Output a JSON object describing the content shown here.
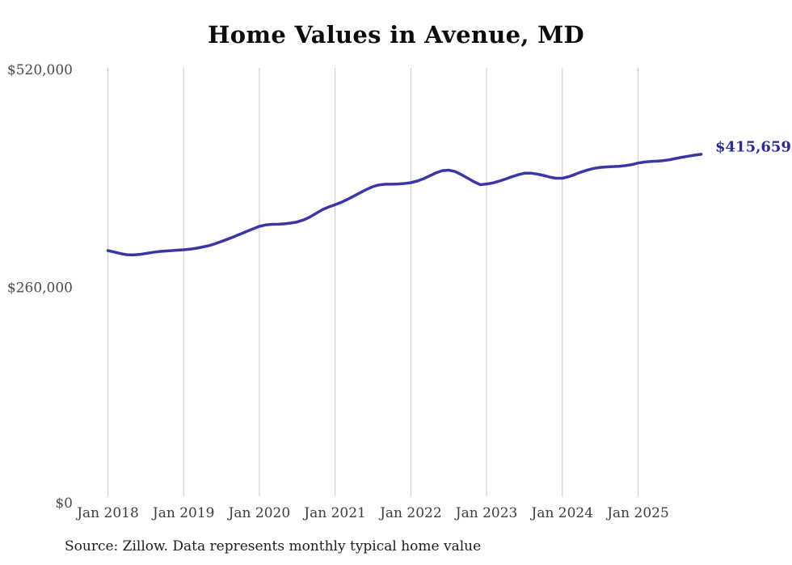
{
  "page": {
    "background": "#ffffff"
  },
  "chart": {
    "title": "Home Values in Avenue, MD",
    "end_label": "$415,659",
    "source": "Source: Zillow. Data represents monthly typical home value"
  },
  "colors": {
    "line": "#3b36a5",
    "end_label": "#2d2b92",
    "grid": "#cacaca",
    "title_text": "#0c0c0c",
    "x_tick_text": "#3d3d3d",
    "y_tick_text": "#4a4a4a",
    "source_text": "#1d1d1d",
    "background": "#ffffff"
  },
  "chart_data": {
    "type": "line",
    "title": "Home Values in Avenue, MD",
    "series_name": "Monthly typical home value (Zillow)",
    "xlabel": "",
    "ylabel": "",
    "ylim": [
      0,
      520000
    ],
    "grid": "vertical-only",
    "legend": "none",
    "last_value": 415659,
    "last_value_label": "$415,659",
    "y_ticks": [
      {
        "value": 520000,
        "label": "$520,000"
      },
      {
        "value": 260000,
        "label": "$260,000"
      },
      {
        "value": 0,
        "label": "$0"
      }
    ],
    "x_ticks": [
      {
        "index": 0,
        "label": "Jan 2018"
      },
      {
        "index": 12,
        "label": "Jan 2019"
      },
      {
        "index": 24,
        "label": "Jan 2020"
      },
      {
        "index": 36,
        "label": "Jan 2021"
      },
      {
        "index": 48,
        "label": "Jan 2022"
      },
      {
        "index": 60,
        "label": "Jan 2023"
      },
      {
        "index": 72,
        "label": "Jan 2024"
      },
      {
        "index": 84,
        "label": "Jan 2025"
      }
    ],
    "x": [
      "Jan 2018",
      "Feb 2018",
      "Mar 2018",
      "Apr 2018",
      "May 2018",
      "Jun 2018",
      "Jul 2018",
      "Aug 2018",
      "Sep 2018",
      "Oct 2018",
      "Nov 2018",
      "Dec 2018",
      "Jan 2019",
      "Feb 2019",
      "Mar 2019",
      "Apr 2019",
      "May 2019",
      "Jun 2019",
      "Jul 2019",
      "Aug 2019",
      "Sep 2019",
      "Oct 2019",
      "Nov 2019",
      "Dec 2019",
      "Jan 2020",
      "Feb 2020",
      "Mar 2020",
      "Apr 2020",
      "May 2020",
      "Jun 2020",
      "Jul 2020",
      "Aug 2020",
      "Sep 2020",
      "Oct 2020",
      "Nov 2020",
      "Dec 2020",
      "Jan 2021",
      "Feb 2021",
      "Mar 2021",
      "Apr 2021",
      "May 2021",
      "Jun 2021",
      "Jul 2021",
      "Aug 2021",
      "Sep 2021",
      "Oct 2021",
      "Nov 2021",
      "Dec 2021",
      "Jan 2022",
      "Feb 2022",
      "Mar 2022",
      "Apr 2022",
      "May 2022",
      "Jun 2022",
      "Jul 2022",
      "Aug 2022",
      "Sep 2022",
      "Oct 2022",
      "Nov 2022",
      "Dec 2022",
      "Jan 2023",
      "Feb 2023",
      "Mar 2023",
      "Apr 2023",
      "May 2023",
      "Jun 2023",
      "Jul 2023",
      "Aug 2023",
      "Sep 2023",
      "Oct 2023",
      "Nov 2023",
      "Dec 2023",
      "Jan 2024",
      "Feb 2024",
      "Mar 2024",
      "Apr 2024",
      "May 2024",
      "Jun 2024",
      "Jul 2024",
      "Aug 2024",
      "Sep 2024",
      "Oct 2024",
      "Nov 2024",
      "Dec 2024",
      "Jan 2025",
      "Feb 2025",
      "Mar 2025",
      "Apr 2025",
      "May 2025",
      "Jun 2025",
      "Jul 2025",
      "Aug 2025",
      "Sep 2025",
      "Oct 2025",
      "Nov 2025"
    ],
    "values": [
      299500,
      297800,
      295900,
      294500,
      294200,
      294800,
      296000,
      297300,
      298200,
      298900,
      299400,
      300000,
      300500,
      301200,
      302300,
      303800,
      305500,
      307800,
      310500,
      313400,
      316400,
      319500,
      322600,
      325800,
      328800,
      330400,
      331200,
      331300,
      331800,
      332800,
      334000,
      336500,
      340000,
      344500,
      348900,
      352200,
      354800,
      357900,
      361500,
      365500,
      369500,
      373400,
      376800,
      378800,
      379600,
      379600,
      379900,
      380500,
      381500,
      383400,
      386200,
      389800,
      393400,
      396000,
      396600,
      394900,
      391200,
      386900,
      382500,
      379000,
      379900,
      381200,
      383300,
      385900,
      388600,
      391000,
      392900,
      393000,
      391900,
      390200,
      388200,
      386800,
      386800,
      388700,
      391400,
      394300,
      396800,
      398700,
      399900,
      400500,
      400900,
      401300,
      402000,
      403200,
      405200,
      406300,
      407000,
      407400,
      408100,
      409200,
      410700,
      412200,
      413500,
      414700,
      415659
    ]
  }
}
